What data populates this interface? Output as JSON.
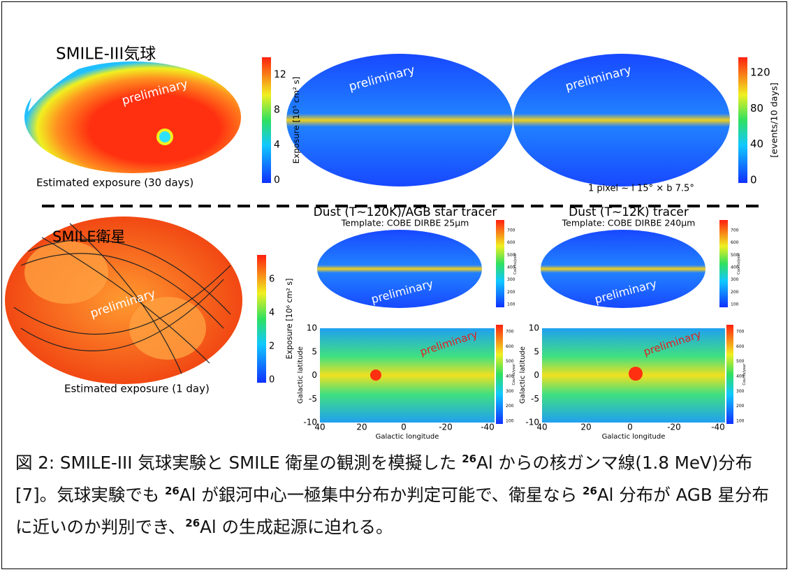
{
  "top_left": {
    "title": "SMILE-III気球",
    "preliminary": "preliminary",
    "caption": "Estimated exposure (30 days)",
    "colorbar": {
      "label": "Exposure [10⁵ cm² s]",
      "ticks": [
        "0",
        "4",
        "8",
        "12"
      ]
    }
  },
  "top_maps": {
    "preliminary": [
      "preliminary",
      "preliminary"
    ],
    "note": "1 pixel ~ l 15°  × b 7.5°",
    "colorbar": {
      "label": "[events/10 days]",
      "ticks": [
        "0",
        "40",
        "80",
        "120"
      ]
    }
  },
  "bottom_left": {
    "title": "SMILE衛星",
    "preliminary": "preliminary",
    "caption": "Estimated exposure (1 day)",
    "colorbar": {
      "label": "Exposure [10⁶ cm² s]",
      "ticks": [
        "0",
        "2",
        "4",
        "6"
      ]
    }
  },
  "dust_maps": [
    {
      "title": "Dust (T~120K)/AGB star tracer",
      "template": "Template: COBE DIRBE 25μm",
      "preliminary": "preliminary",
      "colorbar": {
        "label": "Counts/year",
        "ticks": [
          "100",
          "200",
          "300",
          "400",
          "500",
          "600",
          "700"
        ]
      },
      "plot": {
        "preliminary": "preliminary",
        "ylabel": "Galactic latitude",
        "xlabel": "Galactic longitude",
        "yticks": [
          "10",
          "5",
          "0",
          "-5",
          "-10"
        ],
        "xticks": [
          "40",
          "20",
          "0",
          "-20",
          "-40"
        ],
        "colorbar": {
          "label": "Counts/year",
          "ticks": [
            "100",
            "200",
            "300",
            "400",
            "500",
            "600",
            "700"
          ]
        }
      }
    },
    {
      "title": "Dust (T~12K) tracer",
      "template": "Template: COBE DIRBE 240μm",
      "preliminary": "preliminary",
      "colorbar": {
        "label": "Counts/year",
        "ticks": [
          "100",
          "200",
          "300",
          "400",
          "500",
          "600",
          "700"
        ]
      },
      "plot": {
        "preliminary": "preliminary",
        "ylabel": "Galactic latitude",
        "xlabel": "Galactic longitude",
        "yticks": [
          "10",
          "5",
          "0",
          "-5",
          "-10"
        ],
        "xticks": [
          "40",
          "20",
          "0",
          "-20",
          "-40"
        ],
        "colorbar": {
          "label": "Counts/year",
          "ticks": [
            "100",
            "200",
            "300",
            "400",
            "500",
            "600",
            "700"
          ]
        }
      }
    }
  ],
  "caption": [
    "図 2: SMILE-III 気球実験と SMILE 衛星の観測を模擬した ",
    "26",
    "Al からの核ガンマ線(1.8 MeV)分布[7]。気球実験でも ",
    "26",
    "Al が銀河中心一極集中分布か判定可能で、衛星なら ",
    "26",
    "Al 分布が AGB 星分布に近いのか判別でき、",
    "26",
    "Al の生成起源に迫れる。"
  ]
}
